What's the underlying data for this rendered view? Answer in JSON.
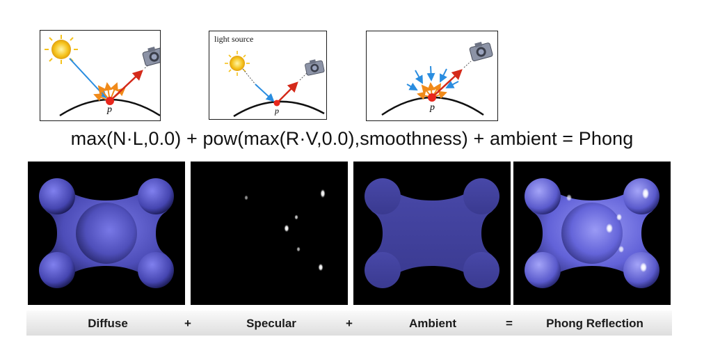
{
  "diagrams": [
    {
      "id": "diffuse",
      "label": "",
      "point_label": "p"
    },
    {
      "id": "specular",
      "label": "light source",
      "point_label": "p"
    },
    {
      "id": "ambient",
      "label": "",
      "point_label": "p"
    }
  ],
  "formula": "max(N·L,0.0) + pow(max(R·V,0.0),smoothness) + ambient = Phong",
  "captions": {
    "diffuse": "Diffuse",
    "plus1": "+",
    "specular": "Specular",
    "plus2": "+",
    "ambient": "Ambient",
    "equals": "=",
    "phong": "Phong Reflection"
  },
  "colors": {
    "sun": "#f5c21b",
    "incoming_ray": "#2a8de0",
    "reflected_ray": "#d42a1a",
    "scatter_rays": "#f08a1a",
    "surface_point": "#e8261c",
    "shape": "#5b5bd6",
    "background": "#000000"
  },
  "icons": [
    "sun-icon",
    "camera-icon"
  ]
}
